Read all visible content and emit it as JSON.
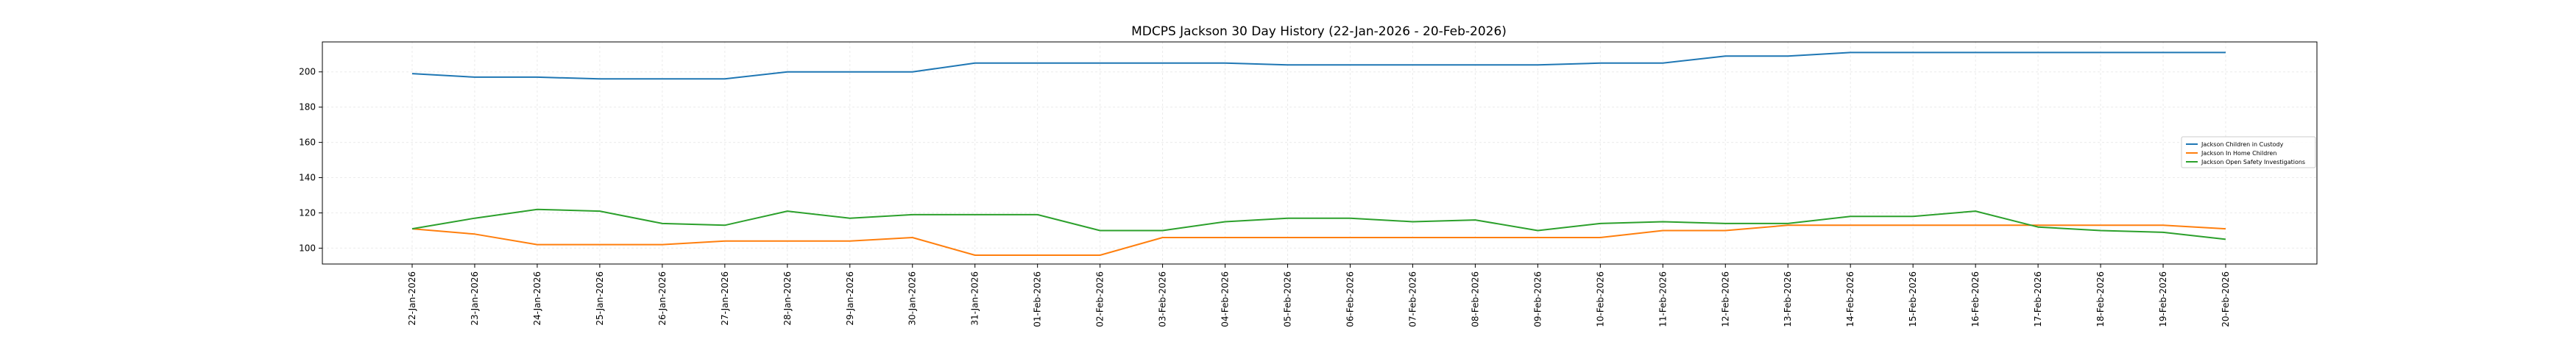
{
  "chart_data": {
    "type": "line",
    "title": "MDCPS Jackson 30 Day History (22-Jan-2026 - 20-Feb-2026)",
    "xlabel": "",
    "ylabel": "",
    "categories": [
      "22-Jan-2026",
      "23-Jan-2026",
      "24-Jan-2026",
      "25-Jan-2026",
      "26-Jan-2026",
      "27-Jan-2026",
      "28-Jan-2026",
      "29-Jan-2026",
      "30-Jan-2026",
      "31-Jan-2026",
      "01-Feb-2026",
      "02-Feb-2026",
      "03-Feb-2026",
      "04-Feb-2026",
      "05-Feb-2026",
      "06-Feb-2026",
      "07-Feb-2026",
      "08-Feb-2026",
      "09-Feb-2026",
      "10-Feb-2026",
      "11-Feb-2026",
      "12-Feb-2026",
      "13-Feb-2026",
      "14-Feb-2026",
      "15-Feb-2026",
      "16-Feb-2026",
      "17-Feb-2026",
      "18-Feb-2026",
      "19-Feb-2026",
      "20-Feb-2026"
    ],
    "y_ticks": [
      100,
      120,
      140,
      160,
      180,
      200
    ],
    "ylim": [
      91,
      217
    ],
    "grid": true,
    "legend_position": "center-right",
    "series": [
      {
        "name": "Jackson Children in Custody",
        "color": "#1f77b4",
        "values": [
          199,
          197,
          197,
          196,
          196,
          196,
          200,
          200,
          200,
          205,
          205,
          205,
          205,
          205,
          204,
          204,
          204,
          204,
          204,
          205,
          205,
          209,
          209,
          211,
          211,
          211,
          211,
          211,
          211,
          211
        ]
      },
      {
        "name": "Jackson In Home Children",
        "color": "#ff7f0e",
        "values": [
          111,
          108,
          102,
          102,
          102,
          104,
          104,
          104,
          106,
          96,
          96,
          96,
          106,
          106,
          106,
          106,
          106,
          106,
          106,
          106,
          110,
          110,
          113,
          113,
          113,
          113,
          113,
          113,
          113,
          111
        ]
      },
      {
        "name": "Jackson Open Safety Investigations",
        "color": "#2ca02c",
        "values": [
          111,
          117,
          122,
          121,
          114,
          113,
          121,
          117,
          119,
          119,
          119,
          110,
          110,
          115,
          117,
          117,
          115,
          116,
          110,
          114,
          115,
          114,
          114,
          118,
          118,
          121,
          112,
          110,
          109,
          105
        ]
      }
    ]
  }
}
